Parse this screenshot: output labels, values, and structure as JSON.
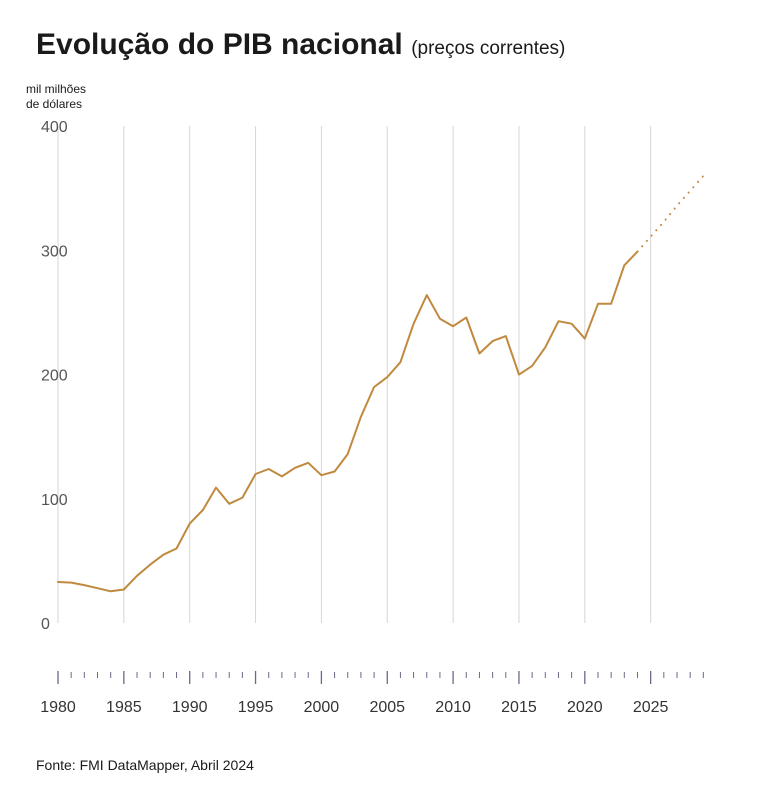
{
  "header": {
    "title": "Evolução do PIB nacional",
    "subtitle": "(preços correntes)",
    "unit_line1": "mil milhões",
    "unit_line2": "de dólares"
  },
  "footer": {
    "source": "Fonte: FMI DataMapper, Abril 2024"
  },
  "colors": {
    "line": "#c08a3e",
    "grid": "#d6d6d6",
    "axis_tick": "#6a6a8a"
  },
  "chart_data": {
    "type": "line",
    "title": "Evolução do PIB nacional",
    "subtitle": "(preços correntes)",
    "ylabel": "mil milhões de dólares",
    "xlabel": "",
    "xlim": [
      1980,
      2029
    ],
    "ylim": [
      0,
      400
    ],
    "yticks": [
      0,
      100,
      200,
      300,
      400
    ],
    "xticks": [
      1980,
      1985,
      1990,
      1995,
      2000,
      2005,
      2010,
      2015,
      2020,
      2025
    ],
    "grid": "vertical",
    "series": [
      {
        "style": "solid",
        "x": [
          1980,
          1981,
          1982,
          1983,
          1984,
          1985,
          1986,
          1987,
          1988,
          1989,
          1990,
          1991,
          1992,
          1993,
          1994,
          1995,
          1996,
          1997,
          1998,
          1999,
          2000,
          2001,
          2002,
          2003,
          2004,
          2005,
          2006,
          2007,
          2008,
          2009,
          2010,
          2011,
          2012,
          2013,
          2014,
          2015,
          2016,
          2017,
          2018,
          2019,
          2020,
          2021,
          2022,
          2023,
          2024
        ],
        "y": [
          33,
          32.5,
          30.5,
          28,
          25.5,
          27,
          38,
          47,
          55,
          60,
          80,
          91,
          109,
          96,
          101,
          120,
          124,
          118,
          125,
          129,
          119,
          122,
          136,
          166,
          190,
          198,
          210,
          241,
          264,
          245,
          239,
          246,
          217,
          227,
          231,
          200,
          207,
          222,
          243,
          241,
          229,
          257,
          257,
          288,
          299
        ]
      },
      {
        "style": "dotted",
        "x": [
          2024,
          2025,
          2026,
          2027,
          2028,
          2029
        ],
        "y": [
          299,
          311,
          323,
          336,
          348,
          360
        ]
      }
    ]
  }
}
